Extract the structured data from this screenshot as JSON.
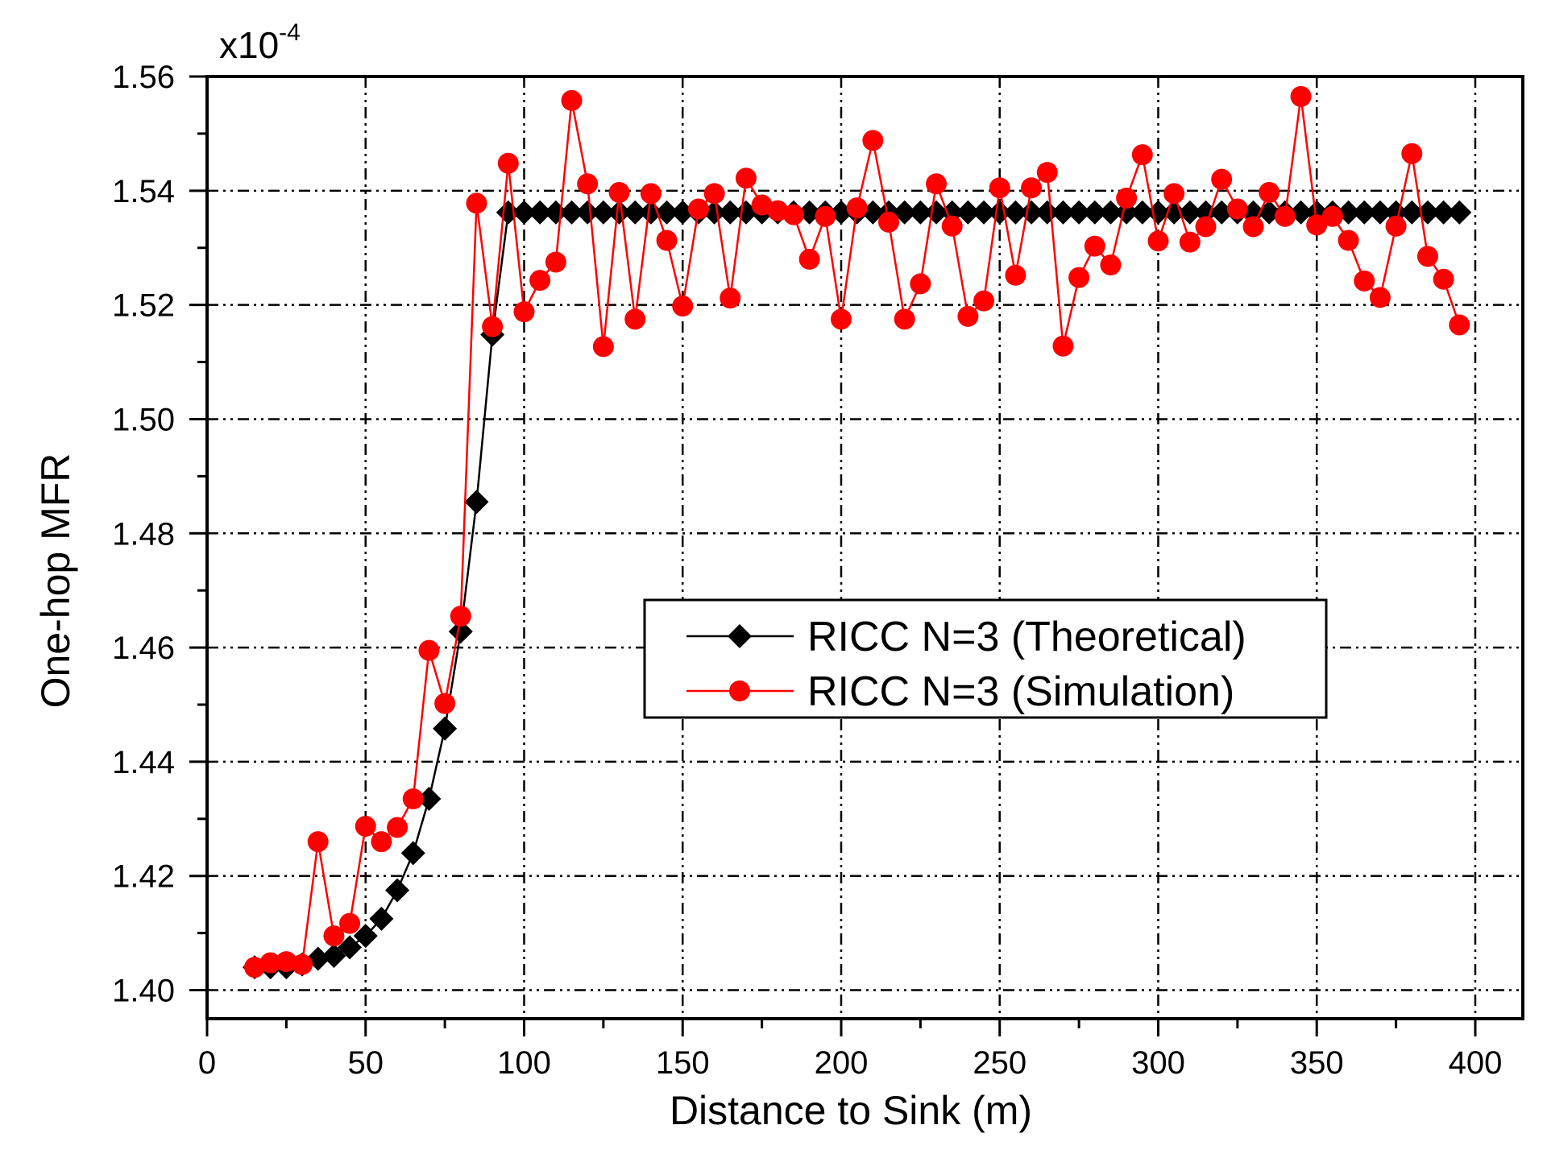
{
  "chart_data": {
    "type": "line",
    "title": "",
    "xlabel": "Distance to Sink (m)",
    "ylabel": "One-hop MFR",
    "y_multiplier": {
      "base": "x10",
      "exponent": "-4"
    },
    "xlim": [
      0,
      415
    ],
    "ylim": [
      1.395,
      1.56
    ],
    "xticks": [
      0,
      50,
      100,
      150,
      200,
      250,
      300,
      350,
      400
    ],
    "yticks": [
      1.4,
      1.42,
      1.44,
      1.46,
      1.48,
      1.5,
      1.52,
      1.54,
      1.56
    ],
    "ytick_labels": [
      "1.40",
      "1.42",
      "1.44",
      "1.46",
      "1.48",
      "1.50",
      "1.52",
      "1.54",
      "1.56"
    ],
    "grid": true,
    "legend_position": "center-right",
    "series": [
      {
        "name": "RICC N=3 (Theoretical)",
        "color": "#000000",
        "marker": "diamond",
        "x": [
          15,
          20,
          25,
          30,
          35,
          40,
          45,
          50,
          55,
          60,
          65,
          70,
          75,
          80,
          85,
          90,
          95,
          100,
          105,
          110,
          115,
          120,
          125,
          130,
          135,
          140,
          145,
          150,
          155,
          160,
          165,
          170,
          175,
          180,
          185,
          190,
          195,
          200,
          205,
          210,
          215,
          220,
          225,
          230,
          235,
          240,
          245,
          250,
          255,
          260,
          265,
          270,
          275,
          280,
          285,
          290,
          295,
          300,
          305,
          310,
          315,
          320,
          325,
          330,
          335,
          340,
          345,
          350,
          355,
          360,
          365,
          370,
          375,
          380,
          385,
          390,
          395
        ],
        "values": [
          1.404,
          1.404,
          1.404,
          1.4045,
          1.4055,
          1.406,
          1.4075,
          1.4095,
          1.4125,
          1.4175,
          1.424,
          1.4335,
          1.4458,
          1.4628,
          1.4855,
          1.5148,
          1.5362,
          1.5362,
          1.5362,
          1.5362,
          1.5362,
          1.5362,
          1.5362,
          1.5362,
          1.5362,
          1.5362,
          1.5362,
          1.5362,
          1.5362,
          1.5362,
          1.5362,
          1.5362,
          1.5362,
          1.5362,
          1.5362,
          1.5362,
          1.5362,
          1.5362,
          1.5362,
          1.5362,
          1.5362,
          1.5362,
          1.5362,
          1.5362,
          1.5362,
          1.5362,
          1.5362,
          1.5362,
          1.5362,
          1.5362,
          1.5362,
          1.5362,
          1.5362,
          1.5362,
          1.5362,
          1.5362,
          1.5362,
          1.5362,
          1.5362,
          1.5362,
          1.5362,
          1.5362,
          1.5362,
          1.5362,
          1.5362,
          1.5362,
          1.5362,
          1.5362,
          1.5362,
          1.5362,
          1.5362,
          1.5362,
          1.5362,
          1.5362,
          1.5362,
          1.5362,
          1.5362
        ]
      },
      {
        "name": "RICC N=3 (Simulation)",
        "color": "#ff0000",
        "marker": "circle",
        "x": [
          15,
          20,
          25,
          30,
          35,
          40,
          45,
          50,
          55,
          60,
          65,
          70,
          75,
          80,
          85,
          90,
          95,
          100,
          105,
          110,
          115,
          120,
          125,
          130,
          135,
          140,
          145,
          150,
          155,
          160,
          165,
          170,
          175,
          180,
          185,
          190,
          195,
          200,
          205,
          210,
          215,
          220,
          225,
          230,
          235,
          240,
          245,
          250,
          255,
          260,
          265,
          270,
          275,
          280,
          285,
          290,
          295,
          300,
          305,
          310,
          315,
          320,
          325,
          330,
          335,
          340,
          345,
          350,
          355,
          360,
          365,
          370,
          375,
          380,
          385,
          390,
          395
        ],
        "values": [
          1.404,
          1.4048,
          1.405,
          1.4045,
          1.426,
          1.4095,
          1.4117,
          1.4287,
          1.426,
          1.4285,
          1.4335,
          1.4595,
          1.4502,
          1.4655,
          1.5378,
          1.5162,
          1.5448,
          1.5188,
          1.5243,
          1.5275,
          1.5558,
          1.5412,
          1.5127,
          1.5397,
          1.5175,
          1.5395,
          1.5313,
          1.5198,
          1.5368,
          1.5395,
          1.5212,
          1.5422,
          1.5375,
          1.5365,
          1.5358,
          1.528,
          1.5355,
          1.5175,
          1.537,
          1.5488,
          1.5345,
          1.5175,
          1.5237,
          1.5412,
          1.5338,
          1.518,
          1.5207,
          1.5405,
          1.5252,
          1.5405,
          1.5432,
          1.5128,
          1.5248,
          1.5303,
          1.527,
          1.5387,
          1.5463,
          1.5312,
          1.5395,
          1.531,
          1.5337,
          1.542,
          1.5368,
          1.5337,
          1.5397,
          1.5355,
          1.5565,
          1.534,
          1.5355,
          1.5313,
          1.5242,
          1.5213,
          1.5338,
          1.5465,
          1.5285,
          1.5245,
          1.5165
        ]
      }
    ]
  }
}
